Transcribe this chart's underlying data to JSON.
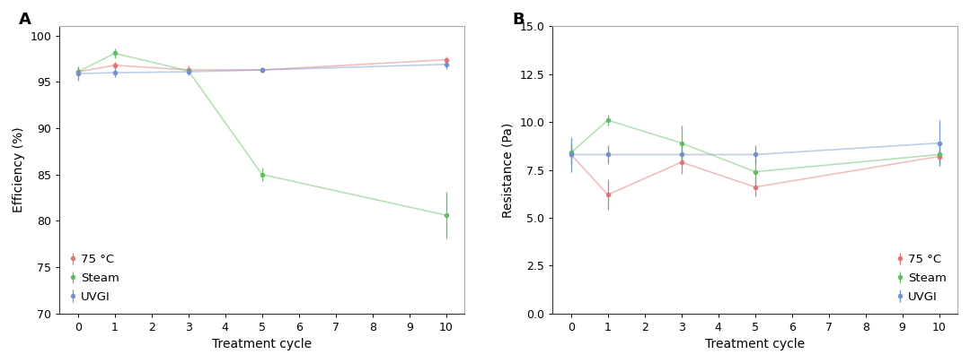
{
  "x_ticks": [
    0,
    1,
    2,
    3,
    4,
    5,
    6,
    7,
    8,
    9,
    10
  ],
  "x_data": [
    0,
    1,
    3,
    5,
    10
  ],
  "A_75C_y": [
    96.1,
    96.8,
    96.3,
    96.3,
    97.4
  ],
  "A_75C_yerr": [
    0.5,
    0.4,
    0.5,
    0.3,
    0.4
  ],
  "A_steam_y": [
    96.1,
    98.1,
    96.2,
    85.0,
    80.6
  ],
  "A_steam_yerr": [
    0.4,
    0.5,
    0.4,
    0.7,
    2.5
  ],
  "A_uvgi_y": [
    95.9,
    96.0,
    96.1,
    96.3,
    96.9
  ],
  "A_uvgi_yerr": [
    0.8,
    0.5,
    0.4,
    0.3,
    0.5
  ],
  "B_75C_y": [
    8.3,
    6.2,
    7.9,
    6.6,
    8.2
  ],
  "B_75C_yerr": [
    0.5,
    0.8,
    0.6,
    0.5,
    0.5
  ],
  "B_steam_y": [
    8.4,
    10.1,
    8.9,
    7.4,
    8.3
  ],
  "B_steam_yerr": [
    0.5,
    0.3,
    0.9,
    0.7,
    0.5
  ],
  "B_uvgi_y": [
    8.3,
    8.3,
    8.3,
    8.3,
    8.9
  ],
  "B_uvgi_yerr": [
    0.9,
    0.5,
    0.5,
    0.5,
    1.2
  ],
  "color_red": "#E07070",
  "color_green": "#60BB60",
  "color_blue": "#7090CC",
  "label_75C": "75 °C",
  "label_steam": "Steam",
  "label_uvgi": "UVGI",
  "A_ylabel": "Efficiency (%)",
  "B_ylabel": "Resistance (Pa)",
  "xlabel": "Treatment cycle",
  "A_ylim": [
    70,
    101
  ],
  "A_yticks": [
    70,
    75,
    80,
    85,
    90,
    95,
    100
  ],
  "B_ylim": [
    0.0,
    15.0
  ],
  "B_yticks": [
    0.0,
    2.5,
    5.0,
    7.5,
    10.0,
    12.5,
    15.0
  ],
  "panel_A": "A",
  "panel_B": "B",
  "marker": "o",
  "markersize": 4,
  "linewidth": 1.2,
  "capsize": 2.5,
  "elinewidth": 0.9,
  "line_alpha": 0.45,
  "dot_alpha": 0.95
}
